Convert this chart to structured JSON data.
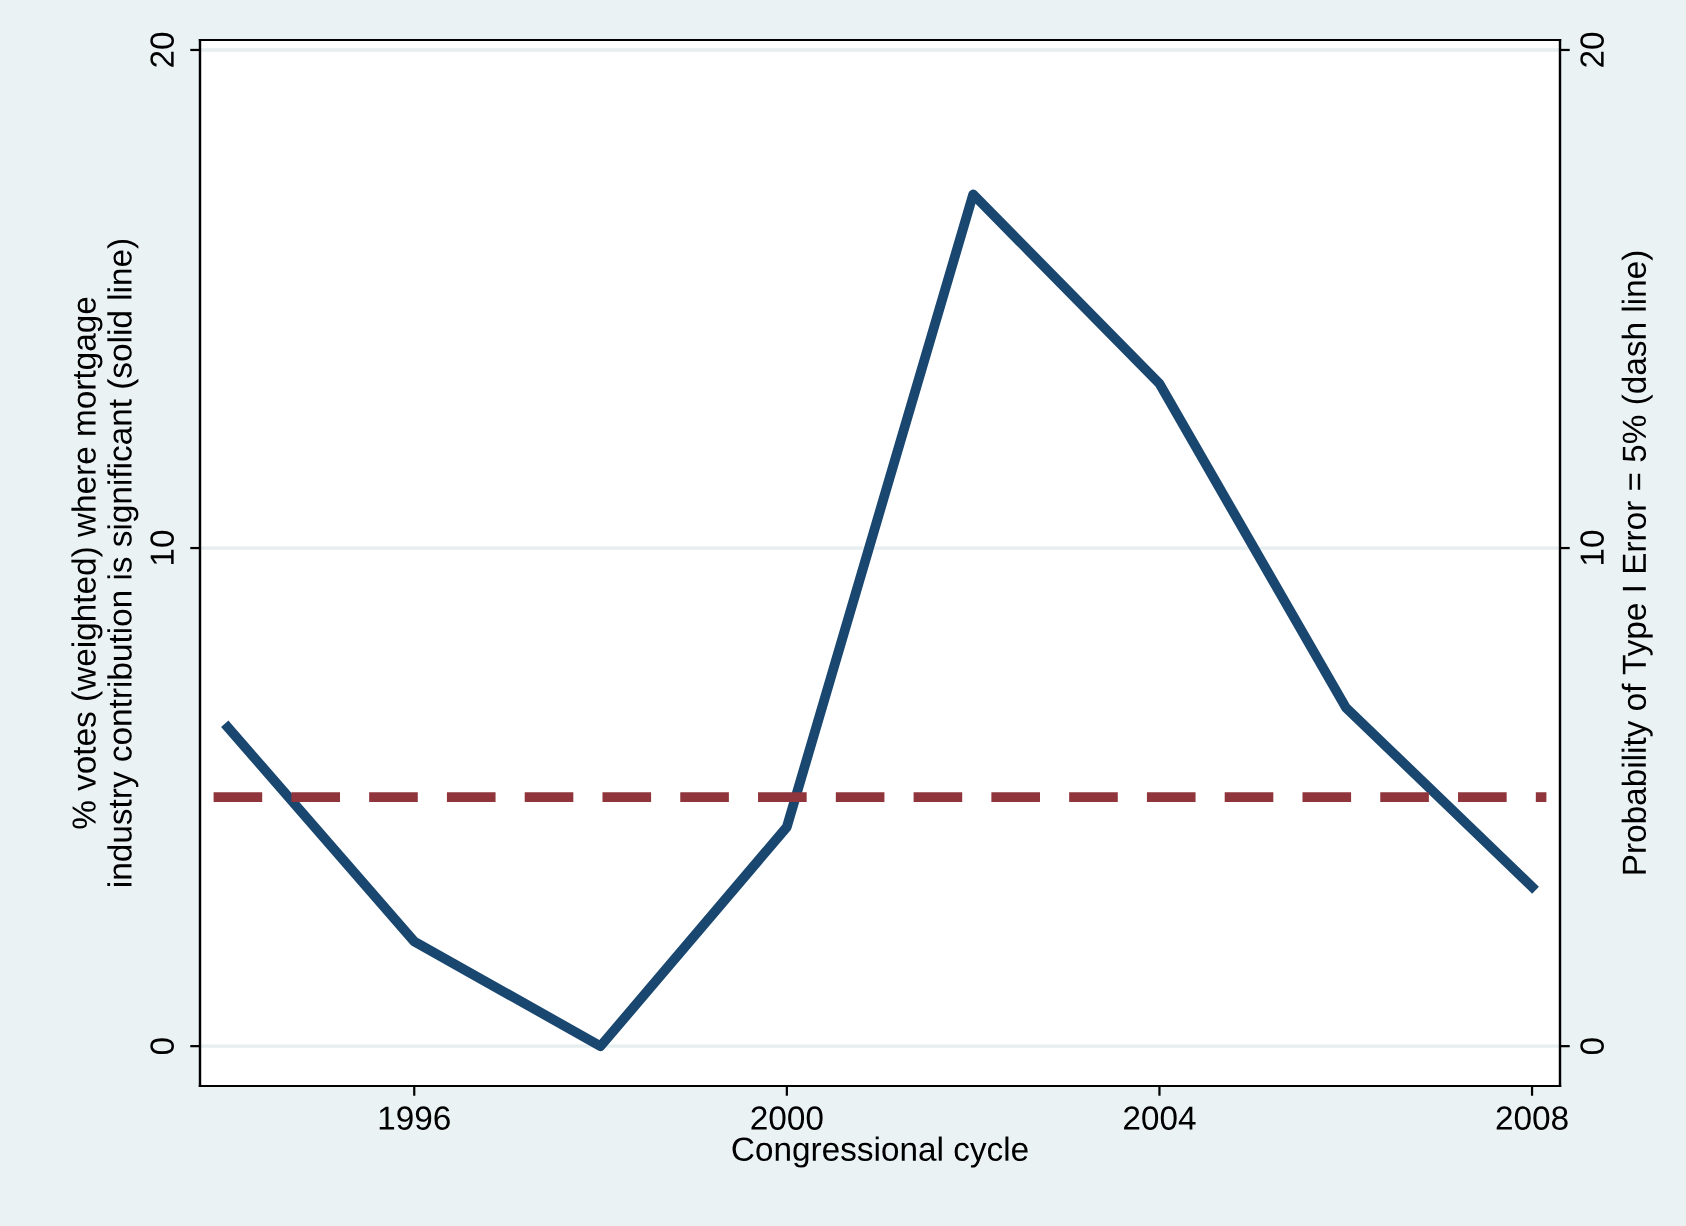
{
  "chart_data": {
    "type": "line",
    "xlabel": "Congressional cycle",
    "ylabel": "% votes (weighted) where mortgage\nindustry contribution is significant (solid line)",
    "y2label": "Probability of Type I Error = 5% (dash line)",
    "x": [
      1994,
      1996,
      1998,
      2000,
      2002,
      2004,
      2006,
      2008
    ],
    "series": [
      {
        "color": "#1a476f",
        "values": [
          6.4,
          2.1,
          0,
          4.4,
          17.1,
          13.3,
          6.8,
          3.2
        ]
      }
    ],
    "ref_lines": [
      {
        "axis": "y2",
        "value": 5,
        "color": "#90353b",
        "line_style": "dashed"
      }
    ],
    "xlim": [
      1993.7,
      2008.3
    ],
    "xticks": [
      1996,
      2000,
      2004,
      2008
    ],
    "ylim": [
      -0.8,
      20.2
    ],
    "yticks": [
      0,
      10,
      20
    ],
    "y2lim": [
      -0.8,
      20.2
    ],
    "y2ticks": [
      0,
      10,
      20
    ],
    "grid": "y",
    "legend": false,
    "marker": "none",
    "line_style": "solid"
  }
}
